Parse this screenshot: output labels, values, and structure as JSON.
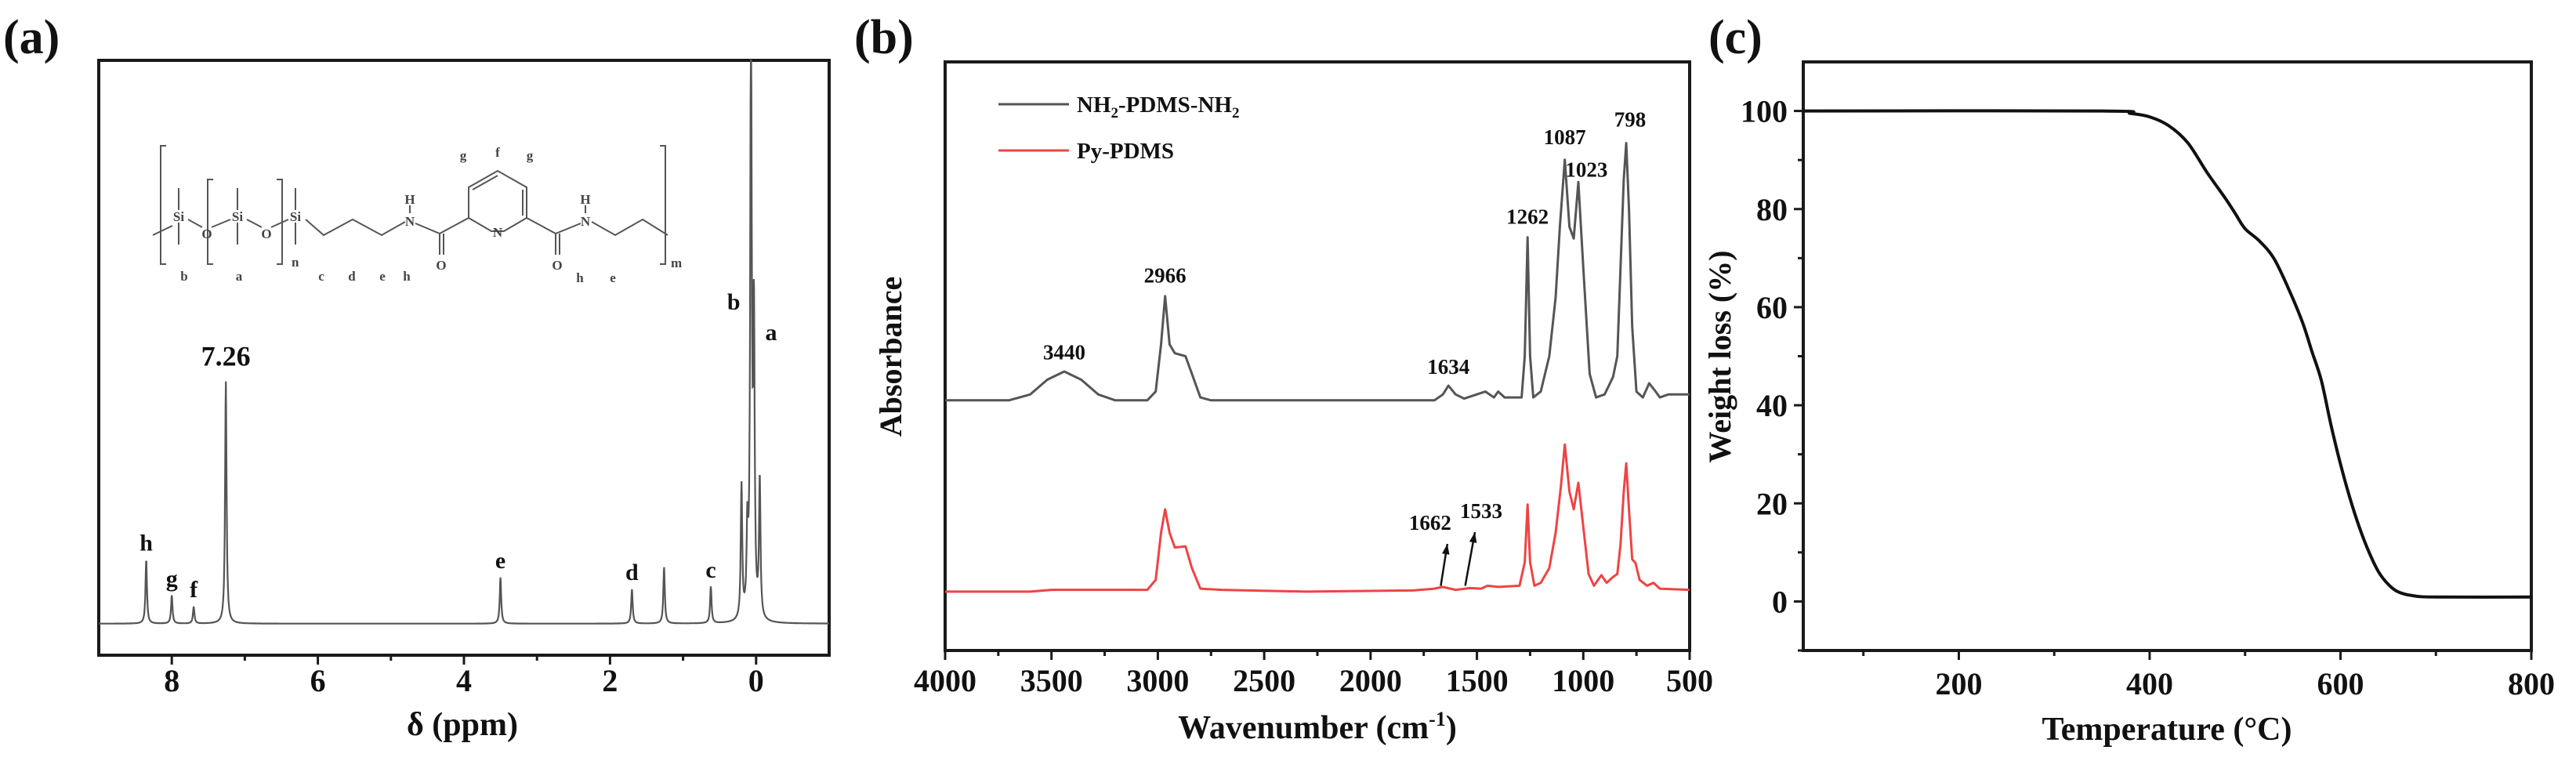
{
  "colors": {
    "axis": "#1a1a1a",
    "nmr": "#555555",
    "ir_black": "#555555",
    "ir_red": "#ee4444",
    "tga": "#111111",
    "arrow": "#111111"
  },
  "chart_data": [
    {
      "panel_label": "(a)",
      "type": "line",
      "xlabel": "δ (ppm)",
      "ylabel": "",
      "xlim": [
        9,
        -1
      ],
      "ylim": [
        -5.6,
        100
      ],
      "x_reversed": true,
      "xticks": [
        8,
        6,
        4,
        2,
        0
      ],
      "yticks": [],
      "grid": false,
      "peaks": [
        {
          "x": 8.35,
          "y": 11.3,
          "label": "h"
        },
        {
          "x": 8.0,
          "y": 5.0,
          "label": "g"
        },
        {
          "x": 7.7,
          "y": 3.0,
          "label": "f"
        },
        {
          "x": 7.26,
          "y": 43.0,
          "label": "7.26"
        },
        {
          "x": 3.5,
          "y": 8.2,
          "label": "e"
        },
        {
          "x": 1.7,
          "y": 6.1,
          "label": "d"
        },
        {
          "x": 1.26,
          "y": 10.0,
          "label": ""
        },
        {
          "x": 0.62,
          "y": 6.5,
          "label": "c"
        },
        {
          "x": 0.2,
          "y": 23.7,
          "label": ""
        },
        {
          "x": 0.12,
          "y": 14.2,
          "label": ""
        },
        {
          "x": 0.07,
          "y": 110,
          "label": "b"
        },
        {
          "x": 0.03,
          "y": 51.7,
          "label": "a"
        },
        {
          "x": -0.05,
          "y": 24.6,
          "label": ""
        }
      ],
      "structure": {
        "atoms": {
          "si": "Si",
          "o": "O",
          "n": "N",
          "h": "H"
        },
        "subscripts": {
          "n": "n",
          "m": "m"
        },
        "proton_labels": {
          "b": "b",
          "a": "a",
          "c": "c",
          "d": "d",
          "e": "e",
          "h": "h",
          "g": "g",
          "f": "f"
        }
      }
    },
    {
      "panel_label": "(b)",
      "type": "line",
      "xlabel": "Wavenumber (cm",
      "xlabel_sup": "-1",
      "xlabel_end": ")",
      "ylabel": "Absorbance",
      "xlim": [
        4000,
        500
      ],
      "ylim": [
        0,
        100
      ],
      "x_reversed": true,
      "xticks": [
        4000,
        3500,
        3000,
        2500,
        2000,
        1500,
        1000,
        500
      ],
      "yticks": [],
      "grid": false,
      "legend_position": "top-left",
      "legend": [
        {
          "name": "NH",
          "sub": "2",
          "mid": "-PDMS-NH",
          "sub2": "2"
        },
        {
          "name": "Py-PDMS",
          "sub": "",
          "mid": "",
          "sub2": ""
        }
      ],
      "series": [
        {
          "name": "NH2-PDMS-NH2",
          "points": [
            [
              4000,
              42.5
            ],
            [
              3700,
              42.5
            ],
            [
              3600,
              43.5
            ],
            [
              3520,
              46
            ],
            [
              3440,
              47.4
            ],
            [
              3360,
              46
            ],
            [
              3280,
              43.5
            ],
            [
              3200,
              42.5
            ],
            [
              3050,
              42.5
            ],
            [
              3010,
              44
            ],
            [
              2985,
              52
            ],
            [
              2966,
              60.2
            ],
            [
              2945,
              52
            ],
            [
              2920,
              50.5
            ],
            [
              2870,
              50
            ],
            [
              2840,
              47
            ],
            [
              2800,
              43
            ],
            [
              2750,
              42.5
            ],
            [
              1700,
              42.5
            ],
            [
              1660,
              43.5
            ],
            [
              1634,
              45
            ],
            [
              1600,
              43.5
            ],
            [
              1560,
              42.8
            ],
            [
              1460,
              44
            ],
            [
              1420,
              43
            ],
            [
              1400,
              44
            ],
            [
              1370,
              43
            ],
            [
              1290,
              43
            ],
            [
              1275,
              50
            ],
            [
              1262,
              70.2
            ],
            [
              1250,
              50
            ],
            [
              1235,
              43
            ],
            [
              1200,
              44
            ],
            [
              1160,
              50
            ],
            [
              1130,
              60
            ],
            [
              1110,
              72
            ],
            [
              1087,
              83.4
            ],
            [
              1065,
              72
            ],
            [
              1045,
              70
            ],
            [
              1023,
              79.6
            ],
            [
              1000,
              65
            ],
            [
              970,
              47
            ],
            [
              940,
              43
            ],
            [
              900,
              43.5
            ],
            [
              880,
              45
            ],
            [
              860,
              46.5
            ],
            [
              840,
              50
            ],
            [
              825,
              65
            ],
            [
              810,
              80
            ],
            [
              798,
              86.2
            ],
            [
              785,
              75
            ],
            [
              770,
              55
            ],
            [
              750,
              44
            ],
            [
              720,
              43
            ],
            [
              690,
              45.4
            ],
            [
              660,
              44
            ],
            [
              640,
              43
            ],
            [
              600,
              43.5
            ],
            [
              500,
              43.5
            ]
          ]
        },
        {
          "name": "Py-PDMS",
          "points": [
            [
              4000,
              10
            ],
            [
              3600,
              10
            ],
            [
              3500,
              10.3
            ],
            [
              3050,
              10.3
            ],
            [
              3010,
              12
            ],
            [
              2985,
              20
            ],
            [
              2966,
              24
            ],
            [
              2945,
              20
            ],
            [
              2920,
              17.5
            ],
            [
              2870,
              17.7
            ],
            [
              2840,
              14
            ],
            [
              2800,
              10.5
            ],
            [
              2700,
              10.3
            ],
            [
              2300,
              10
            ],
            [
              1800,
              10.2
            ],
            [
              1700,
              10.5
            ],
            [
              1662,
              10.8
            ],
            [
              1600,
              10.3
            ],
            [
              1533,
              10.6
            ],
            [
              1480,
              10.5
            ],
            [
              1450,
              11
            ],
            [
              1400,
              10.8
            ],
            [
              1300,
              11
            ],
            [
              1275,
              15
            ],
            [
              1262,
              24.8
            ],
            [
              1250,
              15
            ],
            [
              1230,
              11
            ],
            [
              1200,
              11.5
            ],
            [
              1160,
              14
            ],
            [
              1130,
              20
            ],
            [
              1105,
              28
            ],
            [
              1087,
              35
            ],
            [
              1065,
              27
            ],
            [
              1045,
              24
            ],
            [
              1023,
              28.5
            ],
            [
              1000,
              21
            ],
            [
              975,
              13
            ],
            [
              950,
              11
            ],
            [
              915,
              12.8
            ],
            [
              890,
              11.5
            ],
            [
              860,
              12.5
            ],
            [
              840,
              13
            ],
            [
              825,
              18
            ],
            [
              810,
              27
            ],
            [
              798,
              31.8
            ],
            [
              785,
              24
            ],
            [
              770,
              15.5
            ],
            [
              755,
              14.9
            ],
            [
              735,
              12
            ],
            [
              700,
              11
            ],
            [
              670,
              11.5
            ],
            [
              640,
              10.5
            ],
            [
              500,
              10.3
            ]
          ]
        }
      ],
      "annotations": [
        {
          "text": "3440",
          "x": 3440,
          "y": 49.5
        },
        {
          "text": "2966",
          "x": 2966,
          "y": 62.5
        },
        {
          "text": "1634",
          "x": 1634,
          "y": 47
        },
        {
          "text": "1262",
          "x": 1262,
          "y": 72.5
        },
        {
          "text": "1087",
          "x": 1087,
          "y": 86
        },
        {
          "text": "1023",
          "x": 985,
          "y": 80.5
        },
        {
          "text": "798",
          "x": 780,
          "y": 89
        },
        {
          "text": "1662",
          "x": 1720,
          "y": 20.5,
          "arrow_to": [
            1670,
            11
          ]
        },
        {
          "text": "1533",
          "x": 1480,
          "y": 22.5,
          "arrow_to": [
            1555,
            11
          ]
        }
      ]
    },
    {
      "panel_label": "(c)",
      "type": "line",
      "xlabel": "Temperature (°C)",
      "ylabel": "Weight loss (%)",
      "xlim": [
        37,
        800
      ],
      "ylim": [
        -10,
        110
      ],
      "xticks": [
        200,
        400,
        600,
        800
      ],
      "xminor": [
        100,
        300,
        500,
        700
      ],
      "yticks": [
        0,
        20,
        40,
        60,
        80,
        100
      ],
      "yminor": [
        -10,
        10,
        30,
        50,
        70,
        90
      ],
      "grid": false,
      "series": [
        {
          "points": [
            [
              37,
              100
            ],
            [
              350,
              100
            ],
            [
              380,
              99.5
            ],
            [
              400,
              98.8
            ],
            [
              420,
              97
            ],
            [
              440,
              93.5
            ],
            [
              460,
              87.5
            ],
            [
              480,
              82
            ],
            [
              490,
              79
            ],
            [
              500,
              76
            ],
            [
              515,
              73.5
            ],
            [
              530,
              70
            ],
            [
              545,
              64
            ],
            [
              560,
              57
            ],
            [
              570,
              51
            ],
            [
              580,
              45
            ],
            [
              590,
              36
            ],
            [
              600,
              28
            ],
            [
              610,
              21
            ],
            [
              620,
              15
            ],
            [
              630,
              10
            ],
            [
              640,
              6
            ],
            [
              650,
              3.5
            ],
            [
              660,
              2
            ],
            [
              675,
              1.2
            ],
            [
              700,
              0.9
            ],
            [
              800,
              0.9
            ]
          ]
        }
      ]
    }
  ]
}
